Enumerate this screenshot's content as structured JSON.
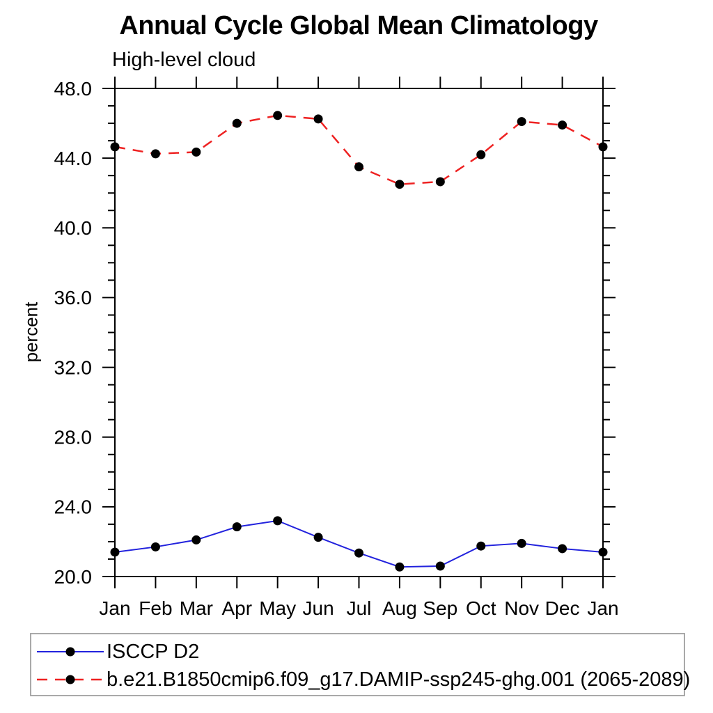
{
  "title": "Annual Cycle Global Mean Climatology",
  "subtitle": "High-level cloud",
  "ylabel": "percent",
  "colors": {
    "axis": "#000000",
    "marker": "#000000",
    "legend_border": "#a9a9a9",
    "series_blue": "#2222dd",
    "series_red": "#ee2222"
  },
  "chart_data": {
    "type": "line",
    "title": "Annual Cycle Global Mean Climatology",
    "subtitle": "High-level cloud",
    "xlabel": "",
    "ylabel": "percent",
    "x_categories": [
      "Jan",
      "Feb",
      "Mar",
      "Apr",
      "May",
      "Jun",
      "Jul",
      "Aug",
      "Sep",
      "Oct",
      "Nov",
      "Dec",
      "Jan"
    ],
    "ylim": [
      20.0,
      48.0
    ],
    "ytick_major_values": [
      20,
      24,
      28,
      32,
      36,
      40,
      44,
      48
    ],
    "ytick_major_labels": [
      "20.0",
      "24.0",
      "28.0",
      "32.0",
      "36.0",
      "40.0",
      "44.0",
      "48.0"
    ],
    "ytick_minor_step": 1,
    "grid": false,
    "legend_position": "bottom-left",
    "series": [
      {
        "name": "ISCCP D2",
        "color": "#2222dd",
        "line_style": "solid",
        "line_width": 2,
        "marker": "circle",
        "marker_color": "#000000",
        "values": [
          21.4,
          21.7,
          22.1,
          22.85,
          23.2,
          22.25,
          21.35,
          20.55,
          20.6,
          21.75,
          21.9,
          21.6,
          21.4
        ]
      },
      {
        "name": "b.e21.B1850cmip6.f09_g17.DAMIP-ssp245-ghg.001 (2065-2089)",
        "color": "#ee2222",
        "line_style": "dashed",
        "line_width": 2.5,
        "marker": "circle",
        "marker_color": "#000000",
        "values": [
          44.65,
          44.25,
          44.35,
          46.0,
          46.45,
          46.25,
          43.5,
          42.5,
          42.65,
          44.2,
          46.1,
          45.9,
          44.65
        ]
      }
    ]
  }
}
